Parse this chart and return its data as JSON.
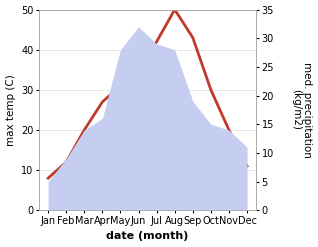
{
  "months": [
    "Jan",
    "Feb",
    "Mar",
    "Apr",
    "May",
    "Jun",
    "Jul",
    "Aug",
    "Sep",
    "Oct",
    "Nov",
    "Dec"
  ],
  "temp": [
    8,
    12,
    20,
    27,
    31,
    34,
    42,
    50,
    43,
    30,
    20,
    11
  ],
  "precip": [
    5,
    9,
    14,
    16,
    28,
    32,
    29,
    28,
    19,
    15,
    14,
    11
  ],
  "temp_color": "#c0392b",
  "precip_fill_color": "#c5cdf0",
  "bg_color": "#ffffff",
  "xlabel": "date (month)",
  "ylabel_left": "max temp (C)",
  "ylabel_right": "med. precipitation\n(kg/m2)",
  "ylim_left": [
    0,
    50
  ],
  "ylim_right": [
    0,
    35
  ],
  "temp_linewidth": 2.0,
  "xlabel_fontsize": 8,
  "ylabel_fontsize": 7.5,
  "tick_fontsize": 7
}
